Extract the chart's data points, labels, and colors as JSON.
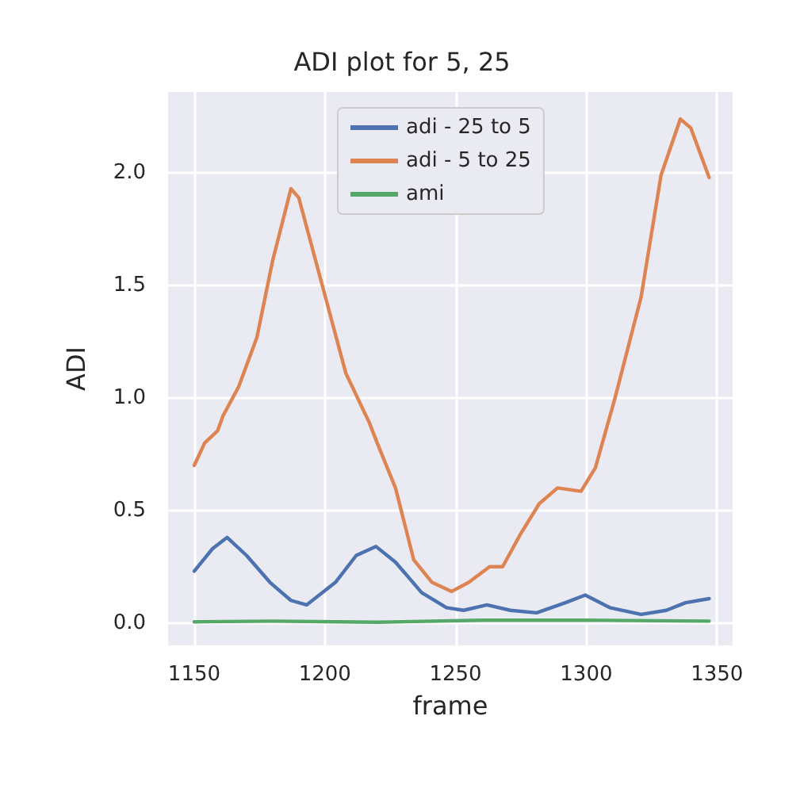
{
  "chart_data": {
    "type": "line",
    "title": "ADI plot for 5, 25",
    "xlabel": "frame",
    "ylabel": "ADI",
    "xlim": [
      1140,
      1356
    ],
    "xticks": [
      1150,
      1200,
      1250,
      1300,
      1350
    ],
    "ylim": [
      -0.1,
      2.36
    ],
    "yticks": [
      {
        "value": 0,
        "label": "0.0"
      },
      {
        "value": 0.5,
        "label": "0.5"
      },
      {
        "value": 1,
        "label": "1.0"
      },
      {
        "value": 1.5,
        "label": "1.5"
      },
      {
        "value": 2,
        "label": "2.0"
      }
    ],
    "grid": true,
    "legend": "top",
    "marker": "none",
    "line_style": "solid",
    "series": [
      {
        "name": "adi - 25 to 5",
        "color": "#4c72b0",
        "x": [
          1150,
          1157,
          1162.6,
          1170,
          1179,
          1187,
          1193,
          1204,
          1212,
          1219.5,
          1227,
          1237,
          1246.5,
          1253,
          1262,
          1271,
          1281,
          1292,
          1299.6,
          1309,
          1321,
          1330.6,
          1338,
          1347
        ],
        "values": [
          0.23,
          0.33,
          0.38,
          0.3,
          0.18,
          0.1,
          0.08,
          0.18,
          0.3,
          0.34,
          0.27,
          0.135,
          0.068,
          0.056,
          0.08,
          0.056,
          0.045,
          0.09,
          0.124,
          0.068,
          0.038,
          0.056,
          0.09,
          0.108
        ]
      },
      {
        "name": "adi - 5 to 25",
        "color": "#dd8452",
        "x": [
          1150,
          1154,
          1159,
          1161,
          1167,
          1174,
          1180,
          1187,
          1190,
          1199,
          1208,
          1217,
          1220,
          1227,
          1234,
          1241,
          1248.5,
          1255,
          1263,
          1268,
          1274.6,
          1282,
          1289,
          1298,
          1303.5,
          1311,
          1321,
          1328.6,
          1336,
          1340,
          1347
        ],
        "values": [
          0.7,
          0.8,
          0.855,
          0.92,
          1.05,
          1.27,
          1.61,
          1.93,
          1.89,
          1.5,
          1.11,
          0.89,
          0.8,
          0.6,
          0.28,
          0.18,
          0.14,
          0.18,
          0.25,
          0.25,
          0.39,
          0.53,
          0.6,
          0.585,
          0.69,
          1.0,
          1.45,
          1.99,
          2.24,
          2.2,
          1.98
        ]
      },
      {
        "name": "ami",
        "color": "#55a868",
        "x": [
          1150,
          1180,
          1220,
          1260,
          1300,
          1347
        ],
        "values": [
          0.005,
          0.008,
          0.003,
          0.012,
          0.012,
          0.008
        ]
      }
    ]
  }
}
